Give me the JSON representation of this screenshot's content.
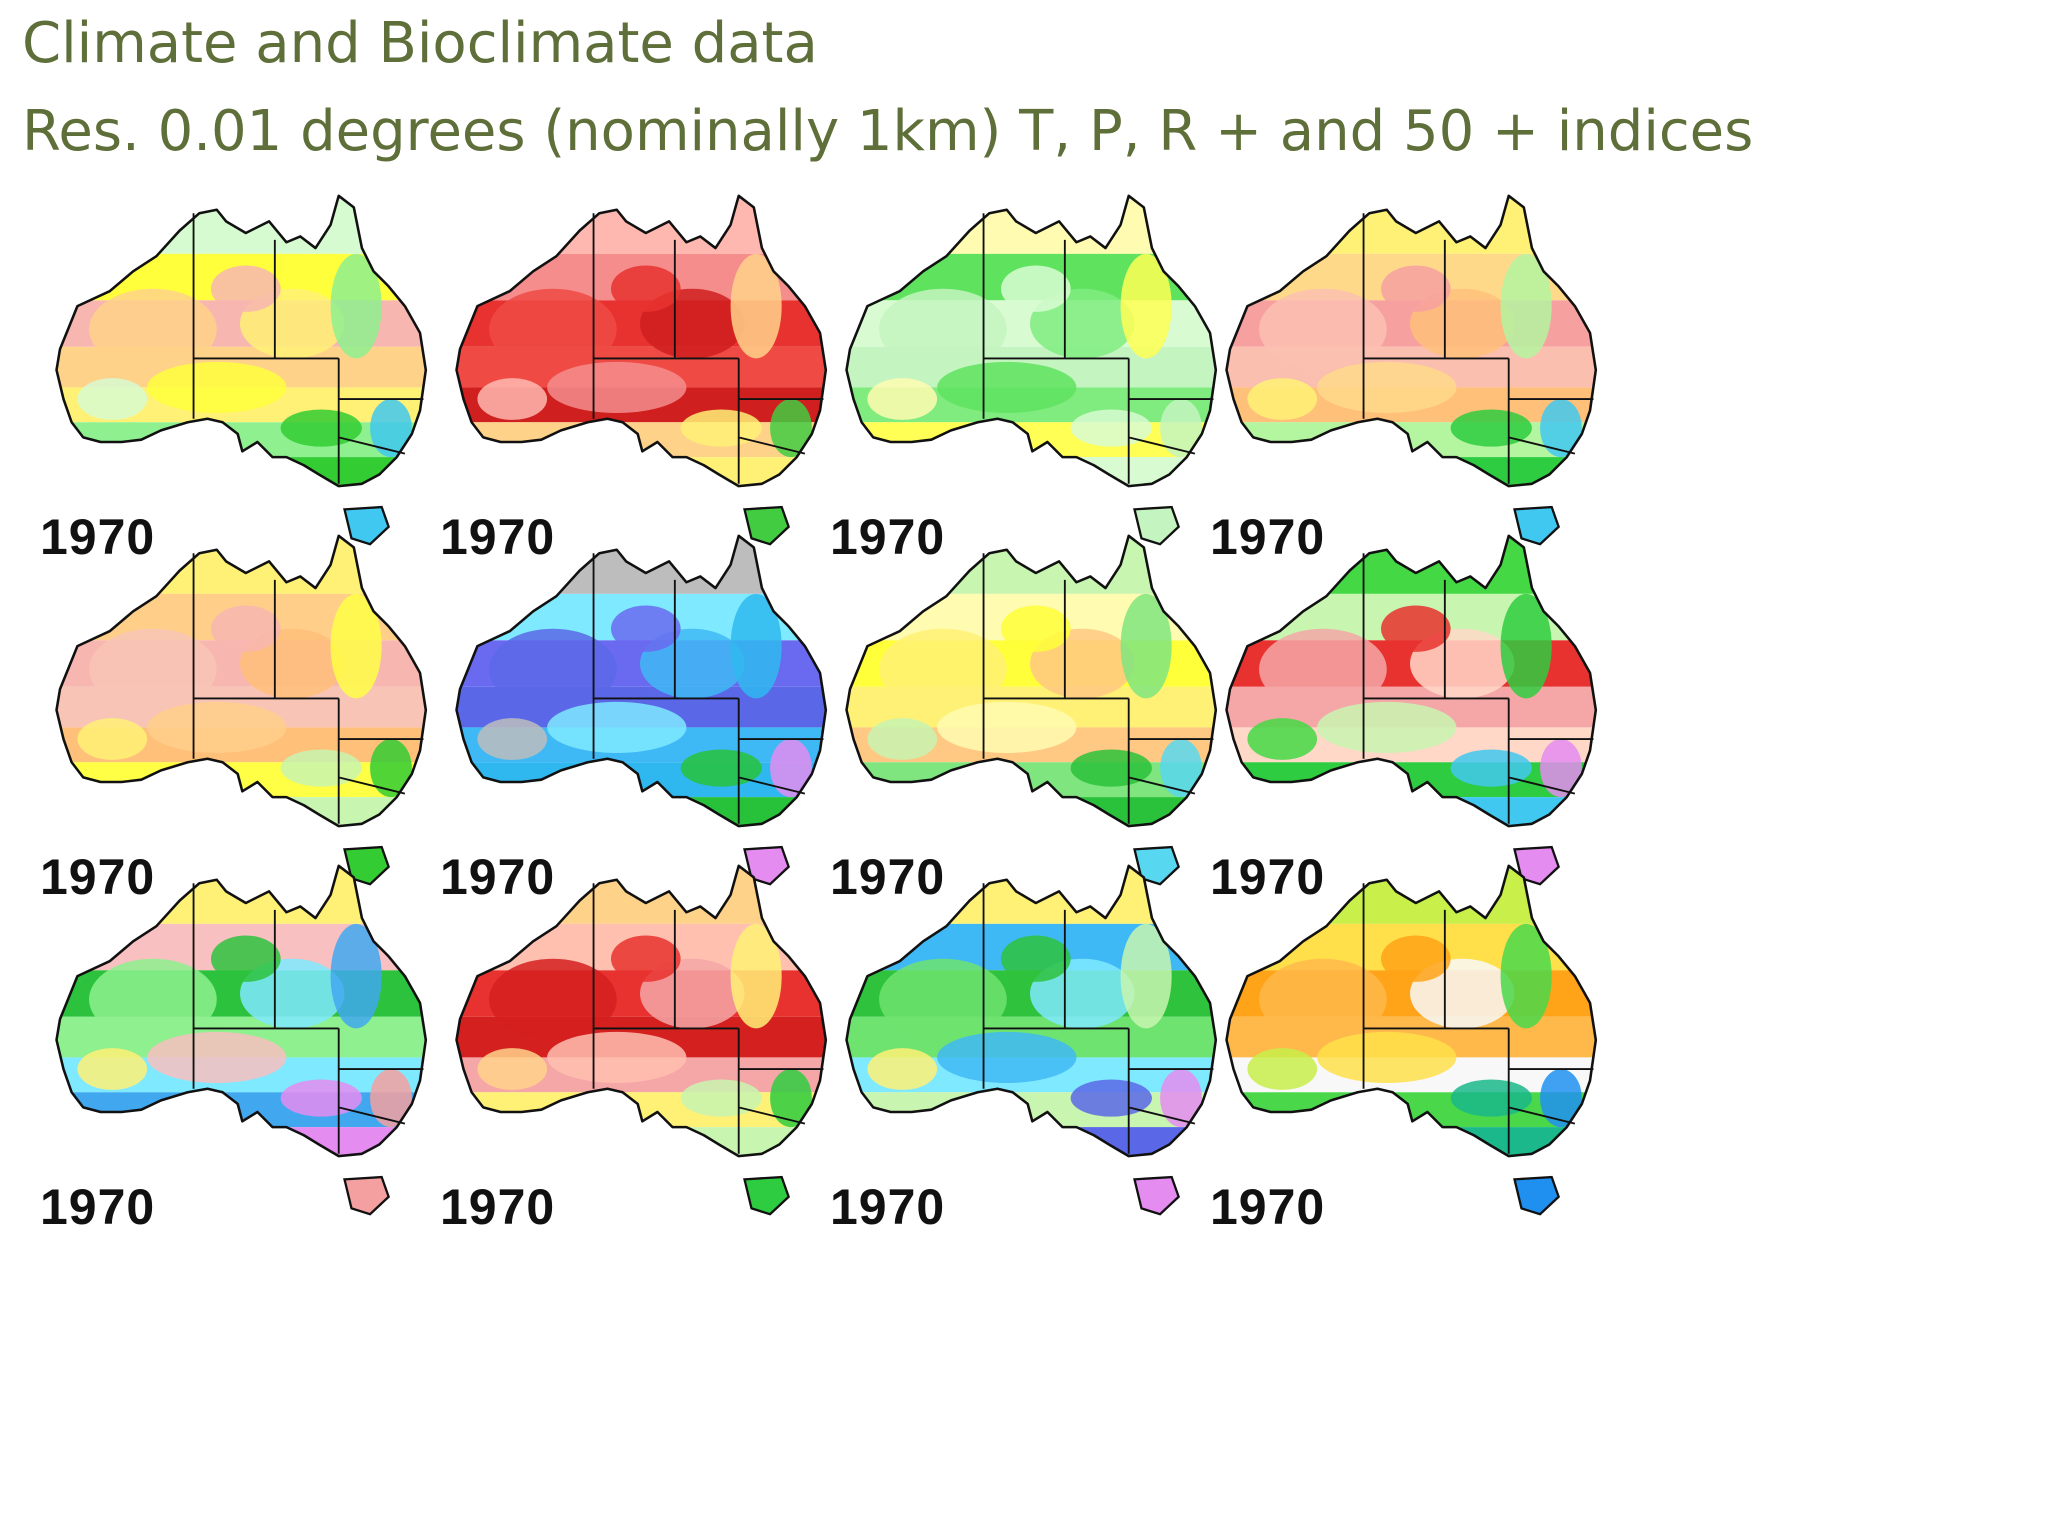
{
  "title": {
    "line1": "Climate and Bioclimate data",
    "line2": "Res. 0.01 degrees (nominally 1km) T, P, R + and 50 + indices"
  },
  "maps": [
    {
      "year": "1970",
      "palette": [
        "#f7b6b0",
        "#ffd28a",
        "#fff176",
        "#ffff3c",
        "#d7fbd0",
        "#8ef08e",
        "#33cc33",
        "#41c8f0"
      ]
    },
    {
      "year": "1970",
      "palette": [
        "#e8322f",
        "#ef4a44",
        "#cf1f1f",
        "#f58d8d",
        "#ffb8b0",
        "#ffd28a",
        "#fff176",
        "#42cc42"
      ]
    },
    {
      "year": "1970",
      "palette": [
        "#d8fbd2",
        "#c4f5c0",
        "#80ec80",
        "#5fe35f",
        "#fffbb0",
        "#ffff55",
        "#d8fbd2",
        "#c4f5c0"
      ]
    },
    {
      "year": "1970",
      "palette": [
        "#f7a0a0",
        "#fbbfb0",
        "#ffc07a",
        "#ffd98a",
        "#fff176",
        "#b4f5a0",
        "#2ecc40",
        "#41c8f0"
      ]
    },
    {
      "year": "1970",
      "palette": [
        "#f7b6b0",
        "#f8c4b6",
        "#ffc07a",
        "#ffcf8a",
        "#fff176",
        "#ffff45",
        "#c8f5b0",
        "#33cc33"
      ]
    },
    {
      "year": "1970",
      "palette": [
        "#6a6af0",
        "#5a68e8",
        "#3fb9f5",
        "#7fe9ff",
        "#bdbdbd",
        "#2fb8f0",
        "#27c23a",
        "#e48cf0"
      ]
    },
    {
      "year": "1970",
      "palette": [
        "#ffff3a",
        "#fff176",
        "#ffc883",
        "#fffbb0",
        "#c8f5b0",
        "#7fe57f",
        "#2bc23b",
        "#58d8f0"
      ]
    },
    {
      "year": "1970",
      "palette": [
        "#e8322f",
        "#f5a7a7",
        "#ffd8c8",
        "#c8f5b0",
        "#44d844",
        "#2ecc40",
        "#41c8f0",
        "#e48cf0"
      ]
    },
    {
      "year": "1970",
      "palette": [
        "#2dc23d",
        "#8ef08e",
        "#7fe9ff",
        "#f8c0c0",
        "#fff176",
        "#41a8f0",
        "#e48cf0",
        "#f5a0a0"
      ]
    },
    {
      "year": "1970",
      "palette": [
        "#e8322f",
        "#d52020",
        "#f5a7a7",
        "#ffc0b0",
        "#ffd28a",
        "#fff176",
        "#c8f5b0",
        "#2ecc40"
      ]
    },
    {
      "year": "1970",
      "palette": [
        "#2ec23d",
        "#6fe36f",
        "#7fe9ff",
        "#3fb9f5",
        "#fff176",
        "#c8f5b0",
        "#5a68e8",
        "#e48cf0"
      ]
    },
    {
      "year": "1970",
      "palette": [
        "#ffa318",
        "#ffb84a",
        "#f8f8f8",
        "#ffe04a",
        "#c8ef4a",
        "#4ad84a",
        "#1ab88a",
        "#2090f0"
      ]
    }
  ]
}
